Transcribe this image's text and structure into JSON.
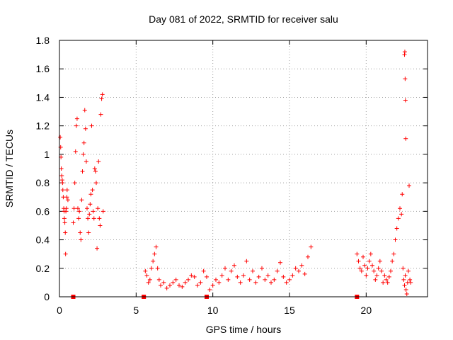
{
  "chart_data": {
    "type": "scatter",
    "title": "Day 081 of 2022, SRMTID for receiver salu",
    "xlabel": "GPS time / hours",
    "ylabel": "SRMTID / TECUs",
    "xlim": [
      0,
      24
    ],
    "ylim": [
      0,
      1.8
    ],
    "xticks": [
      0,
      5,
      10,
      15,
      20
    ],
    "xtick_labels": [
      "0",
      "5",
      "10",
      "15",
      "20"
    ],
    "yticks": [
      0,
      0.2,
      0.4,
      0.6,
      0.8,
      1.0,
      1.2,
      1.4,
      1.6,
      1.8
    ],
    "ytick_labels": [
      "0",
      "0.2",
      "0.4",
      "0.6",
      "0.8",
      "1",
      "1.2",
      "1.4",
      "1.6",
      "1.8"
    ],
    "grid": true,
    "legend": "none",
    "marker": "plus",
    "color": "#ff0000",
    "series": [
      {
        "name": "SRMTID",
        "x": [
          0.05,
          0.08,
          0.1,
          0.12,
          0.15,
          0.18,
          0.2,
          0.22,
          0.25,
          0.28,
          0.3,
          0.32,
          0.35,
          0.38,
          0.4,
          0.42,
          0.45,
          0.48,
          0.5,
          0.55,
          0.9,
          0.95,
          1.0,
          1.05,
          1.1,
          1.15,
          1.2,
          1.25,
          1.3,
          1.35,
          1.4,
          1.45,
          1.5,
          1.55,
          1.6,
          1.65,
          1.7,
          1.75,
          1.8,
          1.85,
          1.9,
          1.95,
          2.0,
          2.05,
          2.1,
          2.15,
          2.2,
          2.25,
          2.3,
          2.35,
          2.4,
          2.45,
          2.5,
          2.55,
          2.6,
          2.65,
          2.7,
          2.75,
          2.8,
          2.85,
          5.6,
          5.7,
          5.8,
          5.9,
          6.0,
          6.1,
          6.2,
          6.3,
          6.4,
          6.5,
          6.6,
          6.8,
          7.0,
          7.2,
          7.4,
          7.6,
          7.8,
          8.0,
          8.2,
          8.4,
          8.6,
          8.8,
          9.0,
          9.2,
          9.4,
          9.6,
          9.8,
          10.0,
          10.2,
          10.4,
          10.6,
          10.8,
          11.0,
          11.2,
          11.4,
          11.6,
          11.8,
          12.0,
          12.2,
          12.4,
          12.6,
          12.8,
          13.0,
          13.2,
          13.4,
          13.6,
          13.8,
          14.0,
          14.2,
          14.4,
          14.6,
          14.8,
          15.0,
          15.2,
          15.4,
          15.6,
          15.8,
          16.0,
          16.2,
          16.4,
          19.4,
          19.5,
          19.6,
          19.7,
          19.8,
          19.9,
          20.0,
          20.1,
          20.2,
          20.3,
          20.4,
          20.5,
          20.6,
          20.7,
          20.8,
          20.9,
          21.0,
          21.1,
          21.2,
          21.3,
          21.4,
          21.5,
          21.6,
          21.7,
          21.8,
          21.9,
          22.0,
          22.1,
          22.2,
          22.3,
          22.35,
          22.4,
          22.45,
          22.5,
          22.55,
          22.6,
          22.65,
          22.7,
          22.75,
          22.8,
          22.85,
          22.9,
          22.5,
          22.52,
          22.54,
          22.56,
          22.58
        ],
        "y": [
          1.12,
          1.05,
          0.98,
          0.9,
          0.85,
          0.82,
          0.8,
          0.75,
          0.7,
          0.62,
          0.6,
          0.55,
          0.52,
          0.45,
          0.3,
          0.6,
          0.62,
          0.7,
          0.75,
          0.68,
          0.52,
          0.62,
          0.8,
          1.02,
          1.2,
          1.25,
          0.62,
          0.55,
          0.6,
          0.45,
          0.4,
          0.68,
          0.88,
          1.0,
          1.08,
          1.31,
          1.18,
          0.95,
          0.62,
          0.55,
          0.45,
          0.58,
          0.65,
          0.72,
          1.2,
          0.75,
          0.6,
          0.55,
          0.9,
          0.88,
          0.8,
          0.34,
          0.62,
          0.95,
          0.55,
          0.5,
          1.28,
          1.39,
          1.42,
          0.6,
          0.18,
          0.15,
          0.1,
          0.12,
          0.2,
          0.25,
          0.3,
          0.35,
          0.2,
          0.12,
          0.08,
          0.1,
          0.06,
          0.08,
          0.1,
          0.12,
          0.08,
          0.07,
          0.1,
          0.12,
          0.15,
          0.14,
          0.08,
          0.1,
          0.18,
          0.14,
          0.05,
          0.08,
          0.12,
          0.1,
          0.15,
          0.2,
          0.12,
          0.18,
          0.22,
          0.14,
          0.1,
          0.15,
          0.25,
          0.12,
          0.18,
          0.1,
          0.14,
          0.2,
          0.12,
          0.15,
          0.1,
          0.12,
          0.18,
          0.24,
          0.14,
          0.1,
          0.12,
          0.15,
          0.2,
          0.18,
          0.22,
          0.16,
          0.28,
          0.35,
          0.3,
          0.25,
          0.2,
          0.18,
          0.28,
          0.22,
          0.15,
          0.2,
          0.25,
          0.3,
          0.22,
          0.18,
          0.12,
          0.15,
          0.2,
          0.25,
          0.18,
          0.1,
          0.15,
          0.12,
          0.1,
          0.14,
          0.18,
          0.25,
          0.3,
          0.4,
          0.48,
          0.55,
          0.62,
          0.58,
          0.72,
          0.2,
          0.12,
          0.08,
          0.15,
          0.05,
          0.02,
          0.1,
          0.18,
          0.78,
          0.12,
          0.1,
          1.7,
          1.72,
          1.53,
          1.38,
          1.11
        ]
      }
    ],
    "axis_markers_x": [
      0.9,
      5.5,
      9.6,
      19.4
    ],
    "axis_markers_y": 0
  }
}
